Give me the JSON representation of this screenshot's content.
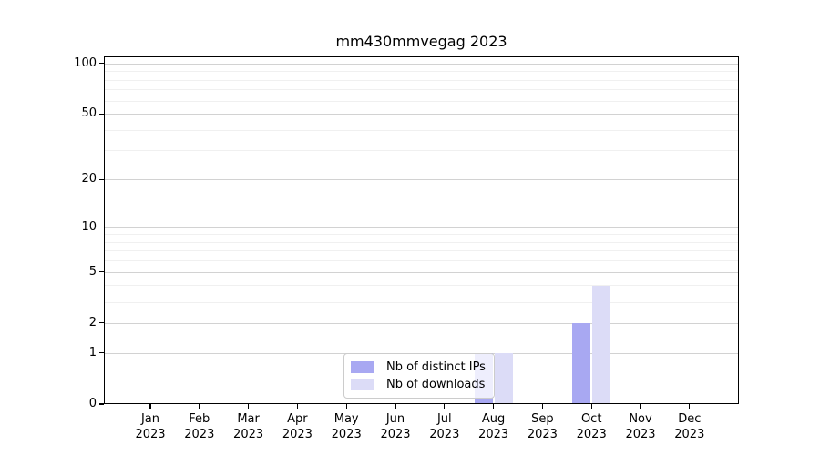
{
  "chart_data": {
    "type": "bar",
    "title": "mm430mmvegag 2023",
    "categories": [
      "Jan",
      "Feb",
      "Mar",
      "Apr",
      "May",
      "Jun",
      "Jul",
      "Aug",
      "Sep",
      "Oct",
      "Nov",
      "Dec"
    ],
    "x_tick_year": "2023",
    "series": [
      {
        "name": "Nb of distinct IPs",
        "color": "#a8a8f2",
        "values": [
          0,
          0,
          0,
          0,
          0,
          0,
          0,
          1,
          0,
          2,
          0,
          0
        ]
      },
      {
        "name": "Nb of downloads",
        "color": "#dcdcf7",
        "values": [
          0,
          0,
          0,
          0,
          0,
          0,
          0,
          1,
          0,
          4,
          0,
          0
        ]
      }
    ],
    "y_ticks": [
      0,
      1,
      2,
      5,
      10,
      20,
      50,
      100
    ],
    "y_minor_gridlines": [
      3,
      4,
      6,
      7,
      8,
      9,
      30,
      40,
      60,
      70,
      80,
      90
    ],
    "y_scale": "log1p",
    "y_max": 110,
    "xlabel": "",
    "ylabel": "",
    "grid": true,
    "legend_position": "inside-bottom-center-left",
    "colors": {
      "background": "#ffffff",
      "spine": "#000000",
      "major_gridline": "#d2d2d2",
      "minor_gridline": "#f0f0f0",
      "text": "#000000",
      "legend_border": "#cccccc"
    }
  }
}
